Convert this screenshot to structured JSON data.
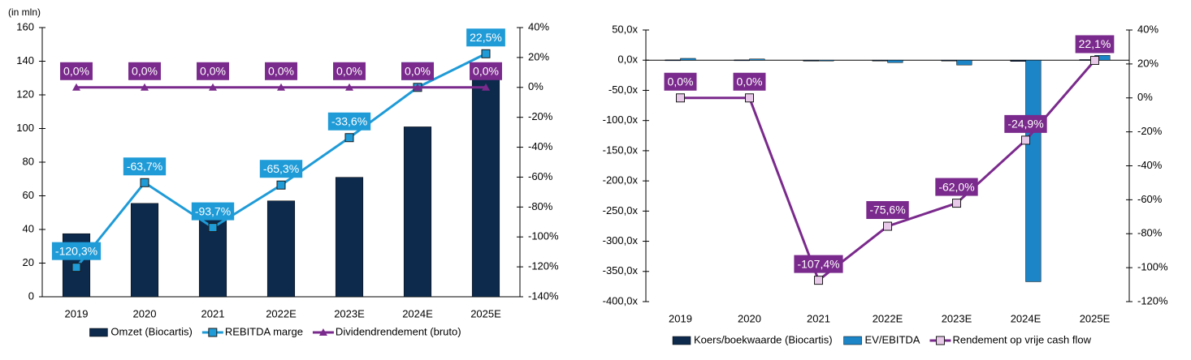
{
  "chart_data": [
    {
      "type": "bar",
      "y_label": "(in mln)",
      "categories": [
        "2019",
        "2020",
        "2021",
        "2022E",
        "2023E",
        "2024E",
        "2025E"
      ],
      "ylim": [
        0,
        160
      ],
      "yticks": [
        0,
        20,
        40,
        60,
        80,
        100,
        120,
        140,
        160
      ],
      "y2lim": [
        -140,
        40
      ],
      "y2ticks": [
        {
          "value": -140,
          "label": "-140%"
        },
        {
          "value": -120,
          "label": "-120%"
        },
        {
          "value": -100,
          "label": "-100%"
        },
        {
          "value": -80,
          "label": "-80%"
        },
        {
          "value": -60,
          "label": "-60%"
        },
        {
          "value": -40,
          "label": "-40%"
        },
        {
          "value": -20,
          "label": "-20%"
        },
        {
          "value": 0,
          "label": "0%"
        },
        {
          "value": 20,
          "label": "20%"
        },
        {
          "value": 40,
          "label": "40%"
        }
      ],
      "series": [
        {
          "name": "Omzet (Biocartis)",
          "type": "bar",
          "color": "#0d2a4d",
          "values": [
            37.5,
            55.5,
            47,
            57,
            71,
            101,
            138
          ]
        },
        {
          "name": "REBITDA marge",
          "type": "line",
          "axis": "y2",
          "marker": "square",
          "color": "#1f9bd7",
          "values": [
            -120.3,
            -63.7,
            -93.7,
            -65.3,
            -33.6,
            0.0,
            22.5
          ],
          "value_labels": [
            "-120,3%",
            "-63,7%",
            "-93,7%",
            "-65,3%",
            "-33,6%",
            "0,0%",
            "22,5%"
          ]
        },
        {
          "name": "Dividendrendement (bruto)",
          "type": "line",
          "axis": "y2",
          "marker": "triangle",
          "color": "#7a2a8c",
          "values": [
            0,
            0,
            0,
            0,
            0,
            0,
            0
          ],
          "value_labels": [
            "0,0%",
            "0,0%",
            "0,0%",
            "0,0%",
            "0,0%",
            "0,0%",
            "0,0%"
          ]
        }
      ]
    },
    {
      "type": "bar",
      "categories": [
        "2019",
        "2020",
        "2021",
        "2022E",
        "2023E",
        "2024E",
        "2025E"
      ],
      "ylim": [
        -400,
        50
      ],
      "yticks": [
        {
          "value": -400,
          "label": "-400,0x"
        },
        {
          "value": -350,
          "label": "-350,0x"
        },
        {
          "value": -300,
          "label": "-300,0x"
        },
        {
          "value": -250,
          "label": "-250,0x"
        },
        {
          "value": -200,
          "label": "-200,0x"
        },
        {
          "value": -150,
          "label": "-150,0x"
        },
        {
          "value": -100,
          "label": "-100,0x"
        },
        {
          "value": -50,
          "label": "-50,0x"
        },
        {
          "value": 0,
          "label": "0,0x"
        },
        {
          "value": 50,
          "label": "50,0x"
        }
      ],
      "y2lim": [
        -120,
        40
      ],
      "y2ticks": [
        {
          "value": -120,
          "label": "-120%"
        },
        {
          "value": -100,
          "label": "-100%"
        },
        {
          "value": -80,
          "label": "-80%"
        },
        {
          "value": -60,
          "label": "-60%"
        },
        {
          "value": -40,
          "label": "-40%"
        },
        {
          "value": -20,
          "label": "-20%"
        },
        {
          "value": 0,
          "label": "0%"
        },
        {
          "value": 20,
          "label": "20%"
        },
        {
          "value": 40,
          "label": "40%"
        }
      ],
      "series": [
        {
          "name": "Koers/boekwaarde (Biocartis)",
          "type": "bar",
          "color": "#0d2a4d",
          "values": [
            0.5,
            0.5,
            -1.5,
            -1,
            -1,
            -2,
            1
          ]
        },
        {
          "name": "EV/EBITDA",
          "type": "bar",
          "color": "#1b85c8",
          "values": [
            3,
            2,
            -1,
            -4,
            -8,
            -367,
            8
          ]
        },
        {
          "name": "Rendement op vrije cash flow",
          "type": "line",
          "axis": "y2",
          "marker": "square",
          "color": "#7a2a8c",
          "marker_fill": "#e8c9ea",
          "values": [
            0.0,
            0.0,
            -107.4,
            -75.6,
            -62.0,
            -24.9,
            22.1
          ],
          "value_labels": [
            "0,0%",
            "0,0%",
            "-107,4%",
            "-75,6%",
            "-62,0%",
            "-24,9%",
            "22,1%"
          ]
        }
      ]
    }
  ]
}
